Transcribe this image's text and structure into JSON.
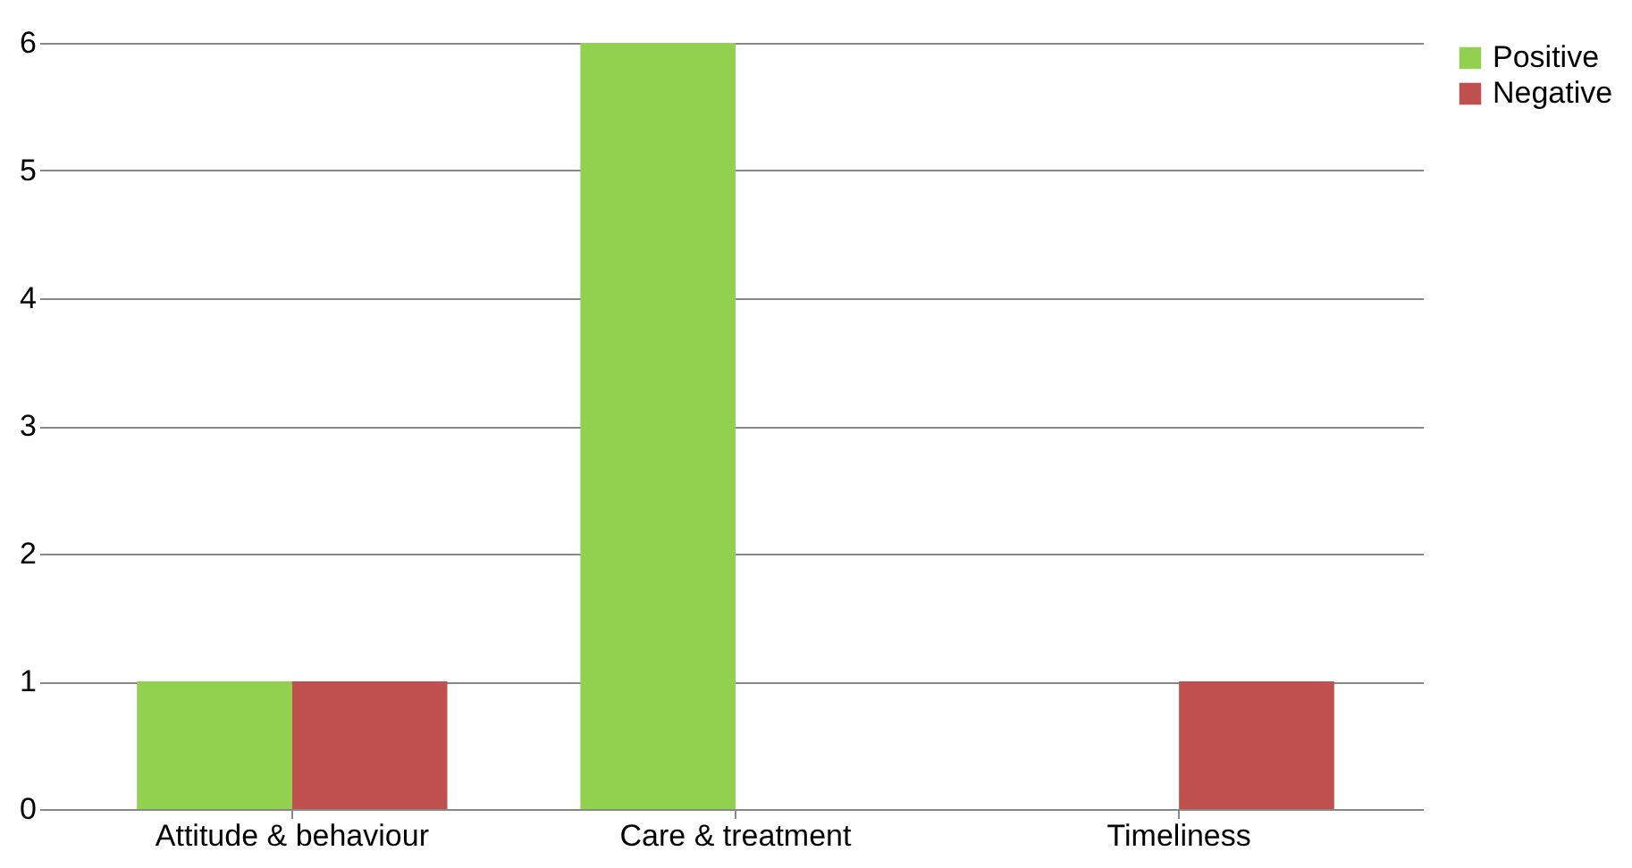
{
  "chart_data": {
    "type": "bar",
    "categories": [
      "Attitude & behaviour",
      "Care & treatment",
      "Timeliness"
    ],
    "series": [
      {
        "name": "Positive",
        "color": "#92d050",
        "values": [
          1,
          6,
          0
        ]
      },
      {
        "name": "Negative",
        "color": "#c0504d",
        "values": [
          1,
          0,
          1
        ]
      }
    ],
    "ylim": [
      0,
      6
    ],
    "yticks": [
      0,
      1,
      2,
      3,
      4,
      5,
      6
    ],
    "grid": "y",
    "legend": "right"
  }
}
